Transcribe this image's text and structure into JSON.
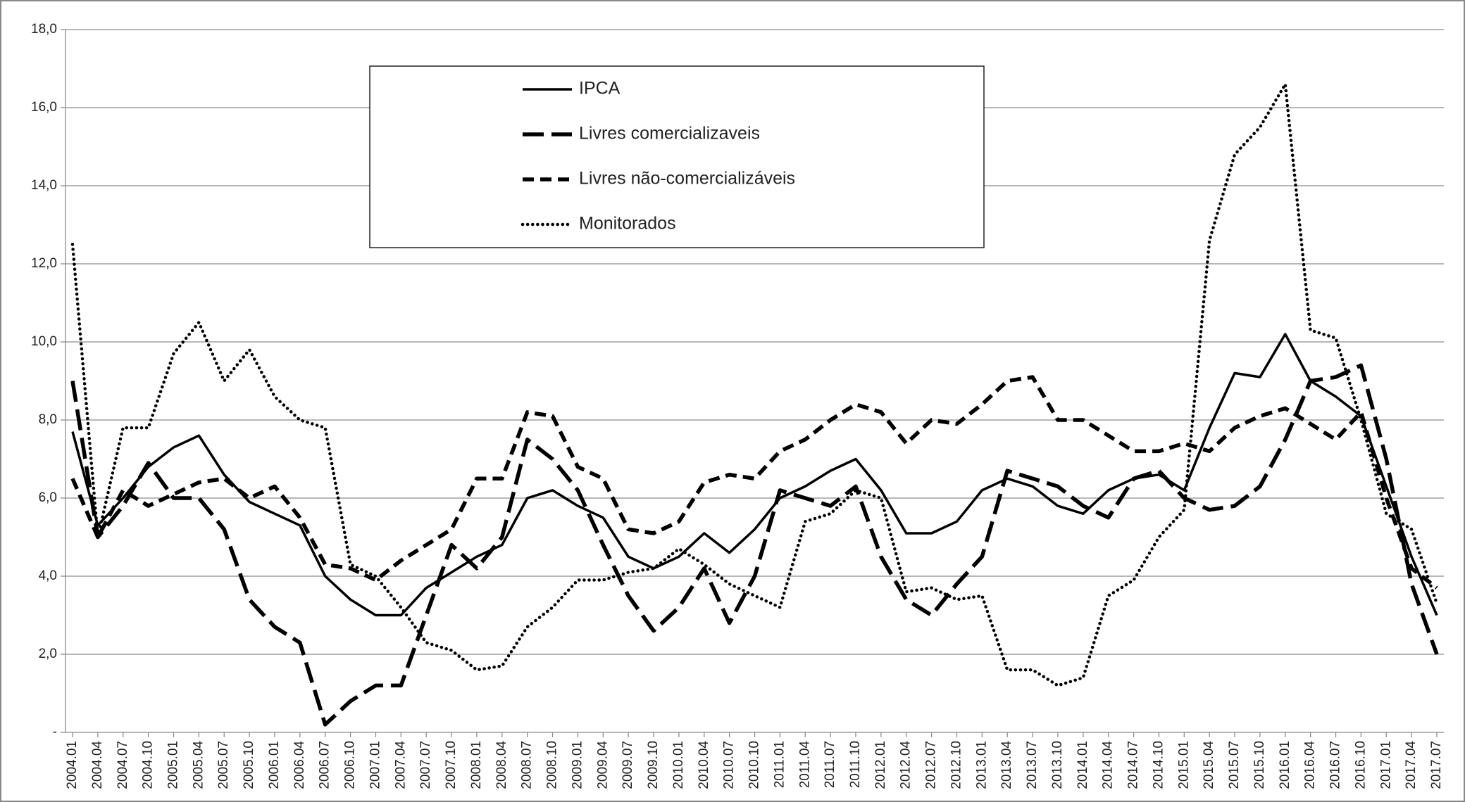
{
  "chart_data": {
    "type": "line",
    "categories": [
      "2004.01",
      "2004.04",
      "2004.07",
      "2004.10",
      "2005.01",
      "2005.04",
      "2005.07",
      "2005.10",
      "2006.01",
      "2006.04",
      "2006.07",
      "2006.10",
      "2007.01",
      "2007.04",
      "2007.07",
      "2007.10",
      "2008.01",
      "2008.04",
      "2008.07",
      "2008.10",
      "2009.01",
      "2009.04",
      "2009.07",
      "2009.10",
      "2010.01",
      "2010.04",
      "2010.07",
      "2010.10",
      "2011.01",
      "2011.04",
      "2011.07",
      "2011.10",
      "2012.01",
      "2012.04",
      "2012.07",
      "2012.10",
      "2013.01",
      "2013.04",
      "2013.07",
      "2013.10",
      "2014.01",
      "2014.04",
      "2014.07",
      "2014.10",
      "2015.01",
      "2015.04",
      "2015.07",
      "2015.10",
      "2016.01",
      "2016.04",
      "2016.07",
      "2016.10",
      "2017.01",
      "2017.04",
      "2017.07"
    ],
    "series": [
      {
        "name": "IPCA",
        "color": "#000000",
        "style": "solid",
        "values": [
          7.7,
          5.3,
          6.0,
          6.8,
          7.3,
          7.6,
          6.6,
          5.9,
          5.6,
          5.3,
          4.0,
          3.4,
          3.0,
          3.0,
          3.7,
          4.1,
          4.5,
          4.8,
          6.0,
          6.2,
          5.8,
          5.5,
          4.5,
          4.2,
          4.5,
          5.1,
          4.6,
          5.2,
          6.0,
          6.3,
          6.7,
          7.0,
          6.2,
          5.1,
          5.1,
          5.4,
          6.2,
          6.5,
          6.3,
          5.8,
          5.6,
          6.2,
          6.5,
          6.6,
          6.2,
          7.8,
          9.2,
          9.1,
          10.2,
          9.0,
          8.6,
          8.1,
          6.3,
          4.5,
          3.0
        ]
      },
      {
        "name": "Livres comercializaveis",
        "color": "#000000",
        "style": "long-dash",
        "values": [
          9.0,
          5.0,
          5.8,
          6.9,
          6.0,
          6.0,
          5.2,
          3.4,
          2.7,
          2.3,
          0.2,
          0.8,
          1.2,
          1.2,
          3.0,
          4.8,
          4.2,
          5.0,
          7.5,
          7.0,
          6.2,
          4.8,
          3.5,
          2.6,
          3.2,
          4.2,
          2.8,
          4.0,
          6.2,
          6.0,
          5.8,
          6.3,
          4.5,
          3.4,
          3.0,
          3.8,
          4.5,
          6.7,
          6.5,
          6.3,
          5.8,
          5.5,
          6.5,
          6.7,
          6.0,
          5.7,
          5.8,
          6.3,
          7.5,
          9.0,
          9.1,
          9.4,
          7.0,
          3.8,
          2.0
        ]
      },
      {
        "name": "Livres não-comercializáveis",
        "color": "#000000",
        "style": "dash",
        "values": [
          6.5,
          5.0,
          6.2,
          5.8,
          6.1,
          6.4,
          6.5,
          6.0,
          6.3,
          5.5,
          4.3,
          4.2,
          3.9,
          4.4,
          4.8,
          5.2,
          6.5,
          6.5,
          8.2,
          8.1,
          6.8,
          6.5,
          5.2,
          5.1,
          5.4,
          6.4,
          6.6,
          6.5,
          7.2,
          7.5,
          8.0,
          8.4,
          8.2,
          7.4,
          8.0,
          7.9,
          8.4,
          9.0,
          9.1,
          8.0,
          8.0,
          7.6,
          7.2,
          7.2,
          7.4,
          7.2,
          7.8,
          8.1,
          8.3,
          7.9,
          7.5,
          8.2,
          6.0,
          4.2,
          3.7
        ]
      },
      {
        "name": "Monitorados",
        "color": "#000000",
        "style": "dot",
        "values": [
          12.5,
          5.0,
          7.8,
          7.8,
          9.7,
          10.5,
          9.0,
          9.8,
          8.6,
          8.0,
          7.8,
          4.3,
          4.0,
          3.2,
          2.3,
          2.1,
          1.6,
          1.7,
          2.7,
          3.2,
          3.9,
          3.9,
          4.1,
          4.2,
          4.7,
          4.3,
          3.8,
          3.5,
          3.2,
          5.4,
          5.6,
          6.2,
          6.0,
          3.6,
          3.7,
          3.4,
          3.5,
          1.6,
          1.6,
          1.2,
          1.4,
          3.5,
          3.9,
          5.0,
          5.7,
          12.6,
          14.8,
          15.5,
          16.6,
          10.3,
          10.1,
          8.0,
          5.6,
          5.2,
          3.3
        ]
      }
    ],
    "ylim": [
      0,
      18
    ],
    "yticks": [
      {
        "value": 0,
        "label": "-"
      },
      {
        "value": 2,
        "label": "2,0"
      },
      {
        "value": 4,
        "label": "4,0"
      },
      {
        "value": 6,
        "label": "6,0"
      },
      {
        "value": 8,
        "label": "8,0"
      },
      {
        "value": 10,
        "label": "10,0"
      },
      {
        "value": 12,
        "label": "12,0"
      },
      {
        "value": 14,
        "label": "14,0"
      },
      {
        "value": 16,
        "label": "16,0"
      },
      {
        "value": 18,
        "label": "18,0"
      }
    ],
    "grid": true,
    "legend": "top"
  }
}
